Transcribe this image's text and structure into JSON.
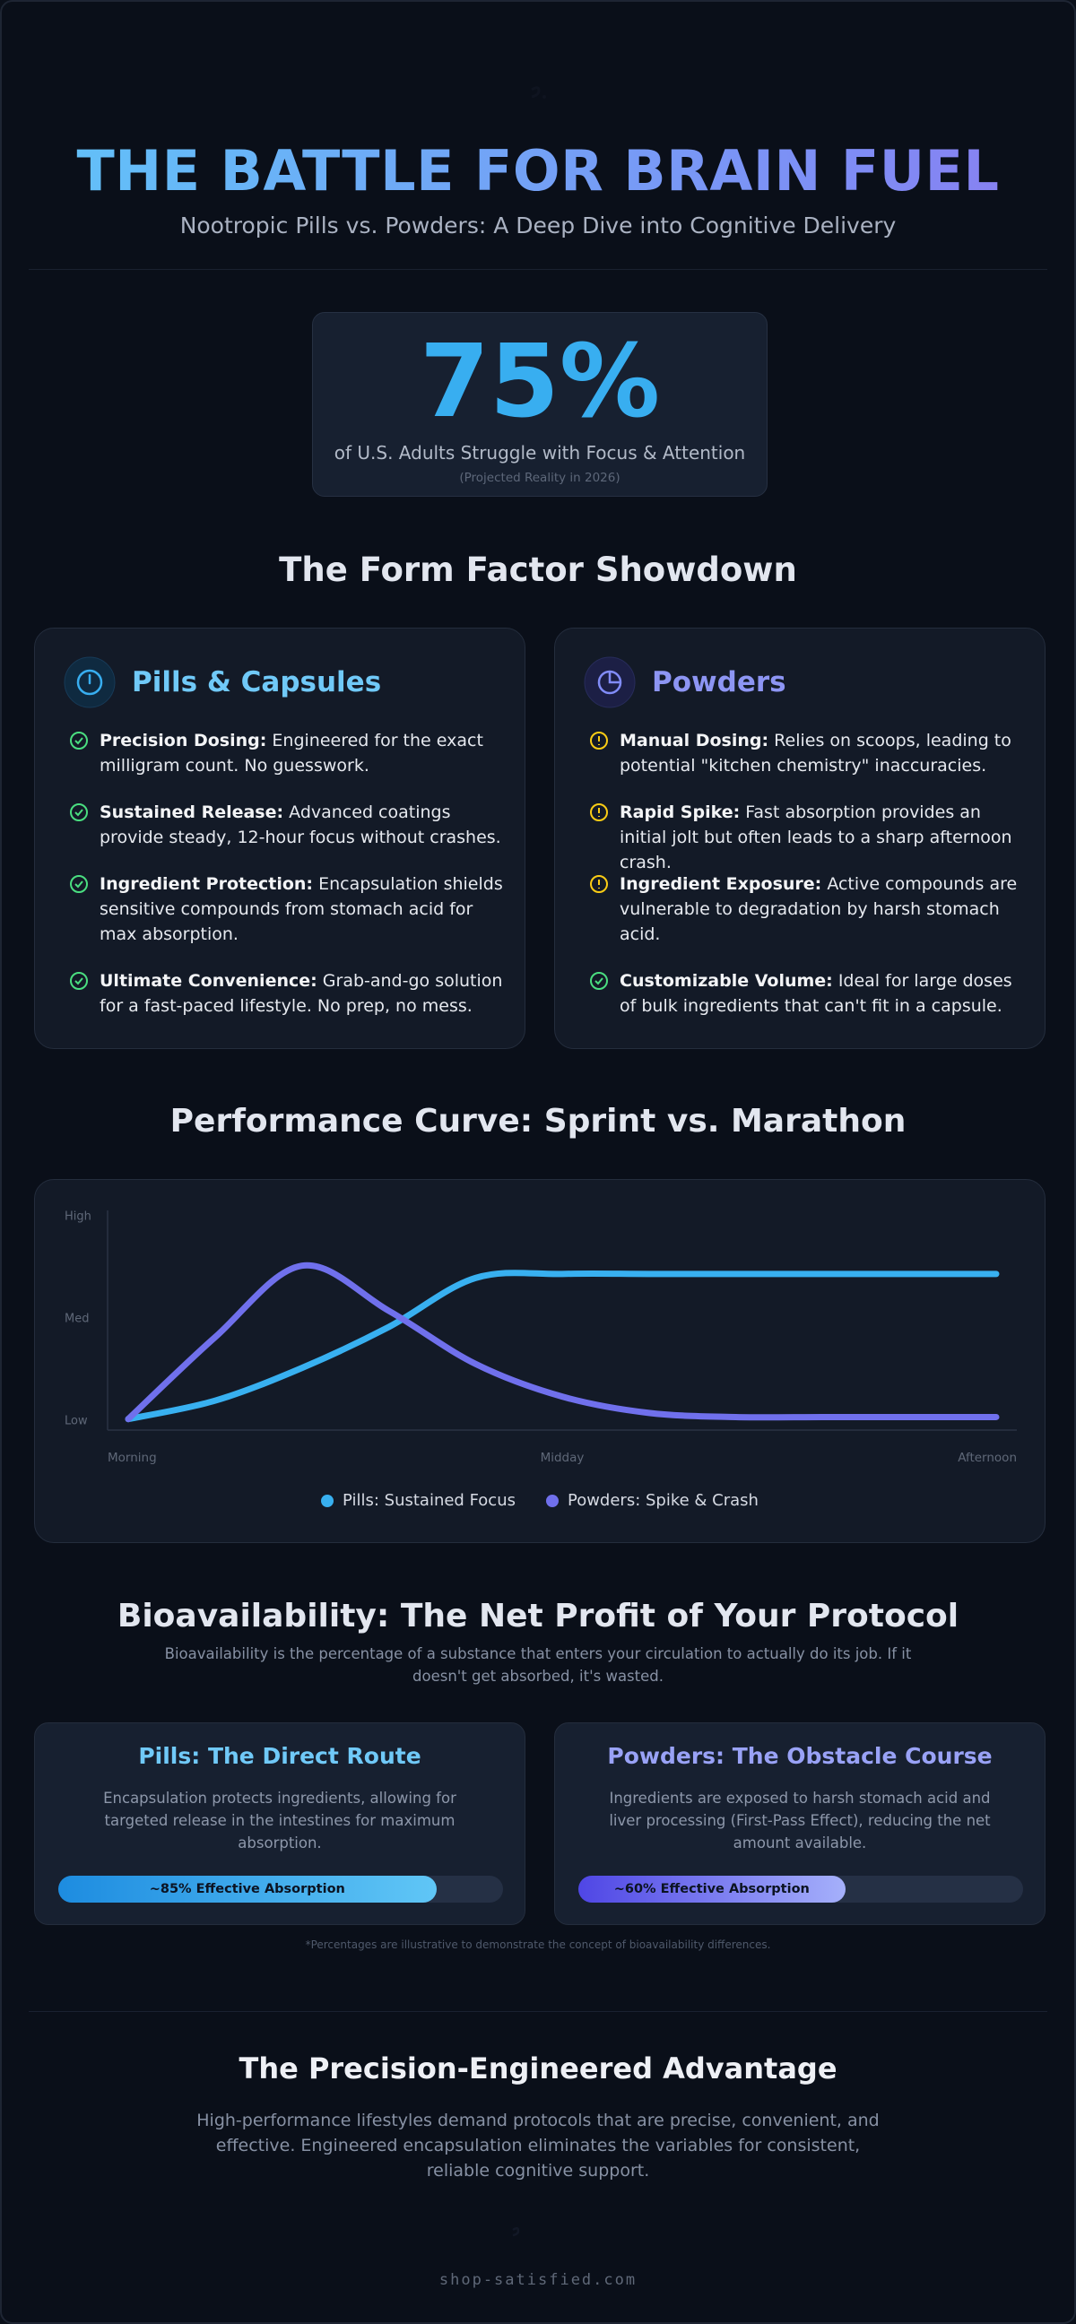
{
  "header": {
    "title": "THE BATTLE FOR BRAIN FUEL",
    "subtitle": "Nootropic Pills vs. Powders: A Deep Dive into Cognitive Delivery"
  },
  "stat": {
    "value": "75%",
    "caption": "of U.S. Adults Struggle with Focus & Attention",
    "note": "(Projected Reality in 2026)"
  },
  "showdown": {
    "title": "The Form Factor Showdown",
    "cards": [
      {
        "title": "Pills & Capsules",
        "items": [
          {
            "label": "Precision Dosing:",
            "text": "Engineered for the exact milligram count. No guesswork."
          },
          {
            "label": "Sustained Release:",
            "text": "Advanced coatings provide steady, 12-hour focus without crashes."
          },
          {
            "label": "Ingredient Protection:",
            "text": "Encapsulation shields sensitive compounds from stomach acid for max absorption."
          },
          {
            "label": "Ultimate Convenience:",
            "text": "Grab-and-go solution for a fast-paced lifestyle. No prep, no mess."
          }
        ]
      },
      {
        "title": "Powders",
        "items": [
          {
            "label": "Manual Dosing:",
            "text": "Relies on scoops, leading to potential \"kitchen chemistry\" inaccuracies."
          },
          {
            "label": "Rapid Spike:",
            "text": "Fast absorption provides an initial jolt but often leads to a sharp afternoon crash."
          },
          {
            "label": "Ingredient Exposure:",
            "text": "Active compounds are vulnerable to degradation by harsh stomach acid."
          },
          {
            "label": "Customizable Volume:",
            "text": "Ideal for large doses of bulk ingredients that can't fit in a capsule."
          }
        ]
      }
    ]
  },
  "chart_data": {
    "type": "line",
    "title": "Performance Curve: Sprint vs. Marathon",
    "categories": [
      "Morning",
      null,
      null,
      null,
      null,
      "Midday",
      null,
      null,
      null,
      null,
      "Afternoon"
    ],
    "series": [
      {
        "name": "Pills: Sustained Focus",
        "color": "#38b0f0",
        "values": [
          1,
          10,
          26,
          46,
          70,
          72,
          72,
          72,
          72,
          72,
          72
        ]
      },
      {
        "name": "Powders: Spike & Crash",
        "color": "#7070ec",
        "values": [
          1,
          41,
          76,
          54,
          28,
          12,
          4,
          2,
          2,
          2,
          2
        ]
      }
    ],
    "ylim": [
      0,
      100
    ],
    "yticks": [
      {
        "value": 0,
        "label": "Low"
      },
      {
        "value": 50,
        "label": "Med"
      },
      {
        "value": 100,
        "label": "High"
      }
    ],
    "legend": "bottom"
  },
  "bioavailability": {
    "title": "Bioavailability: The Net Profit of Your Protocol",
    "description": "Bioavailability is the percentage of a substance that enters your circulation to actually do its job. If it doesn't get absorbed, it's wasted.",
    "cards": [
      {
        "title": "Pills: The Direct Route",
        "text": "Encapsulation protects ingredients, allowing for targeted release in the intestines for maximum absorption.",
        "absorption": 85,
        "absorption_label": "~85% Effective Absorption"
      },
      {
        "title": "Powders: The Obstacle Course",
        "text": "Ingredients are exposed to harsh stomach acid and liver processing (First-Pass Effect), reducing the net amount available.",
        "absorption": 60,
        "absorption_label": "~60% Effective Absorption"
      }
    ],
    "footnote": "*Percentages are illustrative to demonstrate the concept of bioavailability differences."
  },
  "advantage": {
    "title": "The Precision-Engineered Advantage",
    "text": "High-performance lifestyles demand protocols that are precise, convenient, and effective. Engineered encapsulation eliminates the variables for consistent, reliable cognitive support."
  },
  "footer": {
    "site": "shop-satisfied.com"
  }
}
